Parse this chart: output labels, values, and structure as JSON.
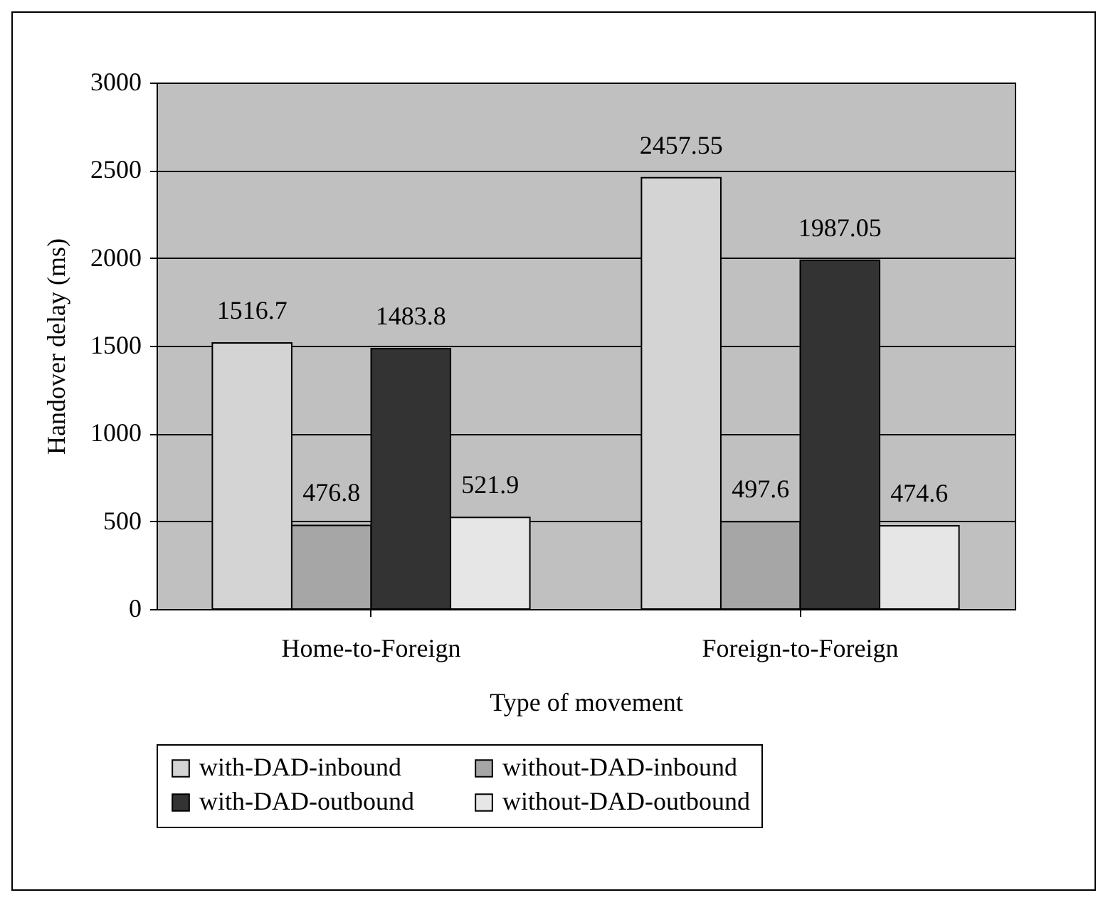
{
  "chart_data": {
    "type": "bar",
    "xlabel": "Type of movement",
    "ylabel": "Handover delay (ms)",
    "categories": [
      "Home-to-Foreign",
      "Foreign-to-Foreign"
    ],
    "series": [
      {
        "name": "with-DAD-inbound",
        "color": "#d4d4d4",
        "values": [
          1516.7,
          2457.55
        ]
      },
      {
        "name": "without-DAD-inbound",
        "color": "#a6a6a6",
        "values": [
          476.8,
          497.6
        ]
      },
      {
        "name": "with-DAD-outbound",
        "color": "#333333",
        "values": [
          1483.8,
          1987.05
        ]
      },
      {
        "name": "without-DAD-outbound",
        "color": "#e6e6e6",
        "values": [
          521.9,
          474.6
        ]
      }
    ],
    "ylim": [
      0,
      3000
    ],
    "yticks": [
      0,
      500,
      1000,
      1500,
      2000,
      2500,
      3000
    ],
    "grid": "y",
    "legend": "bottom",
    "data_labels": true
  }
}
